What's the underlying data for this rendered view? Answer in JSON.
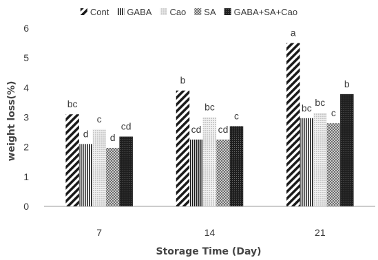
{
  "chart_data": {
    "type": "bar",
    "xlabel": "Storage Time (Day)",
    "ylabel": "weight loss(%)",
    "ylim": [
      0,
      6
    ],
    "yticks": [
      0,
      1,
      2,
      3,
      4,
      5,
      6
    ],
    "grid": false,
    "legend_position": "top",
    "categories": [
      "7",
      "14",
      "21"
    ],
    "series": [
      {
        "name": "Cont",
        "pattern": "diagonal-hatch",
        "values": [
          3.1,
          3.9,
          5.5
        ],
        "labels": [
          "bc",
          "b",
          "a"
        ]
      },
      {
        "name": "GABA",
        "pattern": "vertical-lines",
        "values": [
          2.1,
          2.25,
          2.97
        ],
        "labels": [
          "d",
          "cd",
          "bc"
        ]
      },
      {
        "name": "Cao",
        "pattern": "light-dots",
        "values": [
          2.6,
          3.0,
          3.15
        ],
        "labels": [
          "c",
          "bc",
          "bc"
        ]
      },
      {
        "name": "SA",
        "pattern": "cross-diagonal",
        "values": [
          1.97,
          2.25,
          2.8
        ],
        "labels": [
          "d",
          "cd",
          "c"
        ]
      },
      {
        "name": "GABA+SA+Cao",
        "pattern": "dark-dense",
        "values": [
          2.35,
          2.7,
          3.78
        ],
        "labels": [
          "cd",
          "c",
          "b"
        ]
      }
    ],
    "colors": {
      "ink": "#222222",
      "axis": "#9a9a9a",
      "text": "#3a3a3a"
    }
  }
}
